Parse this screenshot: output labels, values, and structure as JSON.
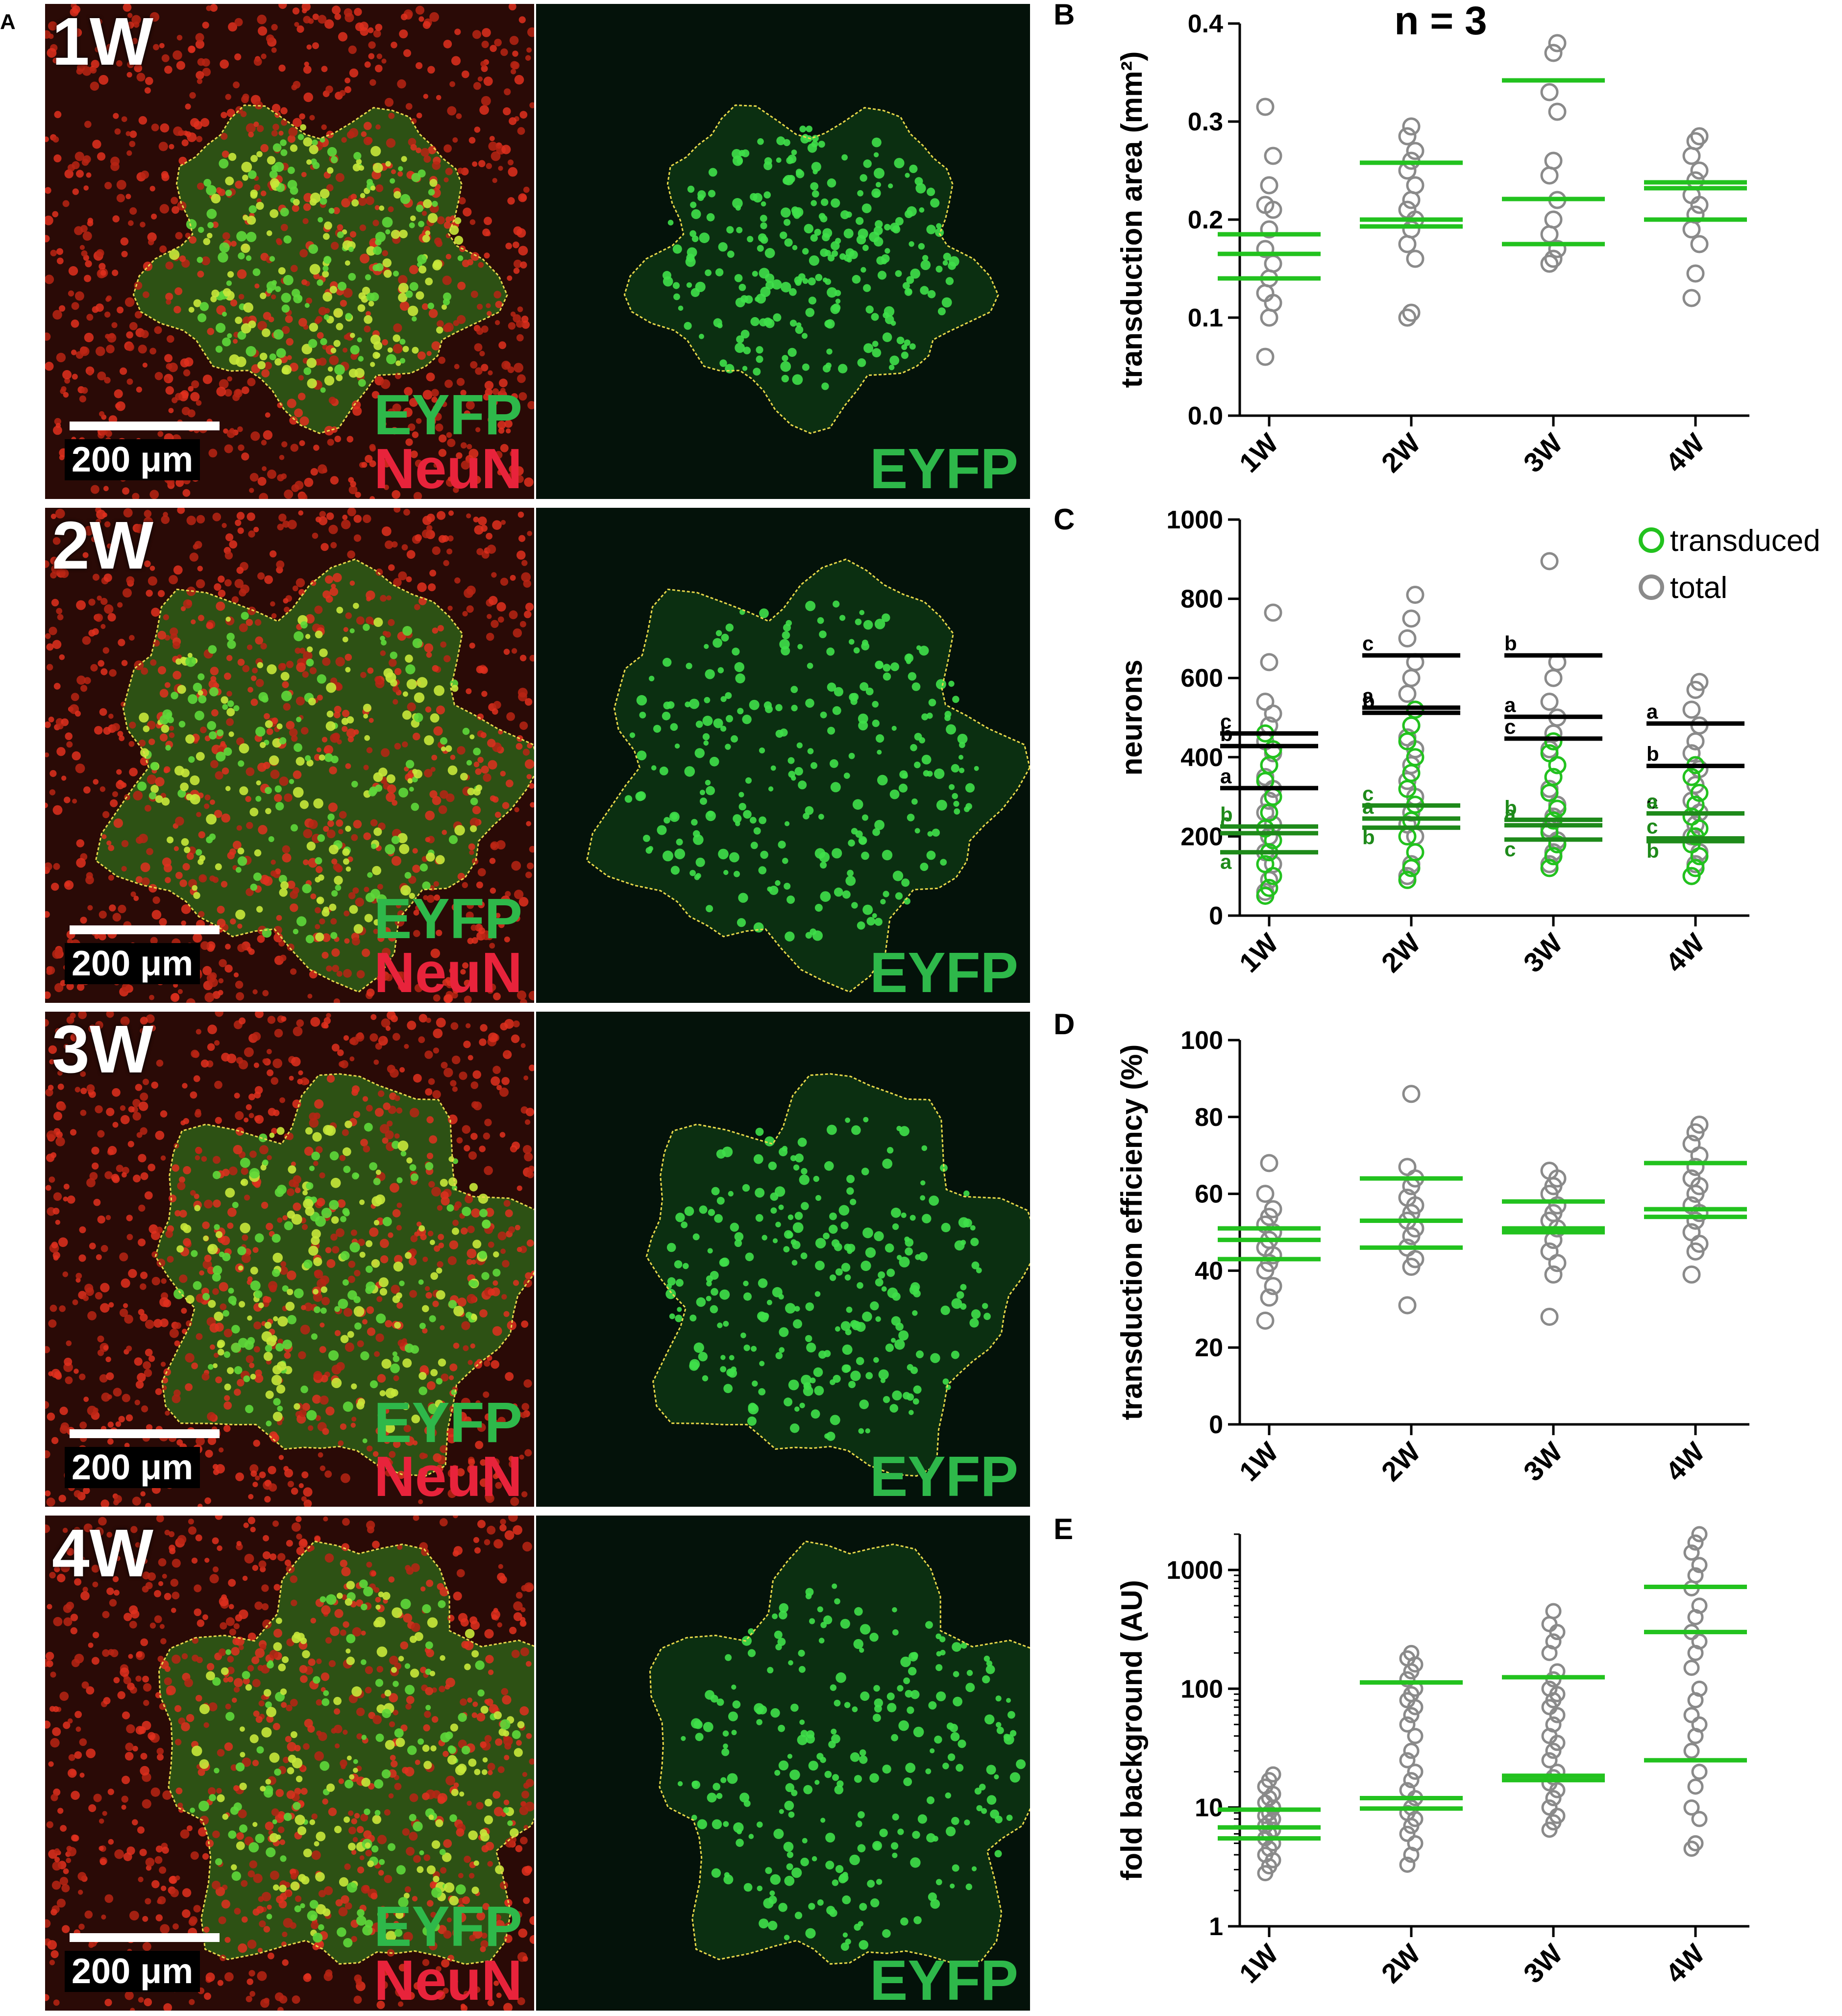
{
  "colors": {
    "green": "#22c21e",
    "gray": "#8a8a8a",
    "black": "#000000",
    "eyfp_text": "#2eb84a",
    "neun_text": "#e8233b"
  },
  "panel_a": {
    "letter": "A",
    "rows": [
      {
        "week": "1W",
        "scale": "200 μm",
        "merge_label_1": "EYFP",
        "merge_label_2": "NeuN",
        "single_label": "EYFP"
      },
      {
        "week": "2W",
        "scale": "200 μm",
        "merge_label_1": "EYFP",
        "merge_label_2": "NeuN",
        "single_label": "EYFP"
      },
      {
        "week": "3W",
        "scale": "200 μm",
        "merge_label_1": "EYFP",
        "merge_label_2": "NeuN",
        "single_label": "EYFP"
      },
      {
        "week": "4W",
        "scale": "200 μm",
        "merge_label_1": "EYFP",
        "merge_label_2": "NeuN",
        "single_label": "EYFP"
      }
    ]
  },
  "chart_data": [
    {
      "panel": "B",
      "type": "scatter",
      "ylabel": "transduction area (mm²)",
      "ylim": [
        0,
        0.4
      ],
      "yticks": [
        "0.0",
        "0.1",
        "0.2",
        "0.3",
        "0.4"
      ],
      "ytick_values": [
        0,
        0.1,
        0.2,
        0.3,
        0.4
      ],
      "categories": [
        "1W",
        "2W",
        "3W",
        "4W"
      ],
      "annotation": "n = 3",
      "points": [
        [
          0.06,
          0.1,
          0.115,
          0.125,
          0.14,
          0.155,
          0.17,
          0.19,
          0.21,
          0.215,
          0.235,
          0.265,
          0.315
        ],
        [
          0.1,
          0.105,
          0.16,
          0.175,
          0.19,
          0.2,
          0.21,
          0.22,
          0.235,
          0.25,
          0.26,
          0.27,
          0.285,
          0.295
        ],
        [
          0.155,
          0.16,
          0.17,
          0.185,
          0.2,
          0.22,
          0.245,
          0.26,
          0.31,
          0.33,
          0.37,
          0.38
        ],
        [
          0.12,
          0.145,
          0.175,
          0.19,
          0.205,
          0.215,
          0.225,
          0.24,
          0.25,
          0.265,
          0.28,
          0.285
        ]
      ],
      "means": [
        [
          0.185,
          0.165,
          0.14
        ],
        [
          0.258,
          0.2,
          0.193
        ],
        [
          0.342,
          0.221,
          0.175
        ],
        [
          0.238,
          0.232,
          0.2
        ]
      ]
    },
    {
      "panel": "C",
      "type": "scatter",
      "ylabel": "neurons",
      "ylim": [
        0,
        1000
      ],
      "yticks": [
        "0",
        "200",
        "400",
        "600",
        "800",
        "1000"
      ],
      "ytick_values": [
        0,
        200,
        400,
        600,
        800,
        1000
      ],
      "categories": [
        "1W",
        "2W",
        "3W",
        "4W"
      ],
      "legend": [
        "transduced",
        "total"
      ],
      "points_total": [
        [
          60,
          90,
          130,
          160,
          200,
          230,
          260,
          290,
          320,
          350,
          380,
          410,
          440,
          480,
          510,
          540,
          640,
          765
        ],
        [
          100,
          130,
          200,
          230,
          260,
          300,
          340,
          380,
          420,
          450,
          480,
          520,
          560,
          600,
          640,
          700,
          750,
          810
        ],
        [
          130,
          160,
          190,
          220,
          250,
          280,
          320,
          350,
          380,
          420,
          460,
          500,
          540,
          600,
          640,
          895
        ],
        [
          100,
          130,
          160,
          200,
          230,
          260,
          290,
          330,
          370,
          410,
          440,
          480,
          520,
          570,
          590
        ]
      ],
      "points_transduced": [
        [
          50,
          70,
          100,
          130,
          160,
          190,
          220,
          260,
          300,
          340,
          380,
          420,
          460
        ],
        [
          90,
          120,
          160,
          200,
          240,
          280,
          320,
          360,
          400,
          440,
          480,
          520
        ],
        [
          120,
          150,
          180,
          210,
          240,
          270,
          310,
          350,
          380,
          410,
          440
        ],
        [
          100,
          120,
          150,
          180,
          200,
          220,
          250,
          280,
          310,
          350,
          380
        ]
      ],
      "means_black": [
        [
          460,
          428,
          322
        ],
        [
          657,
          525,
          512
        ],
        [
          657,
          502,
          447
        ],
        [
          485,
          378,
          258
        ]
      ],
      "means_green": [
        [
          225,
          208,
          160
        ],
        [
          278,
          245,
          222
        ],
        [
          242,
          228,
          192
        ],
        [
          258,
          195,
          188
        ]
      ],
      "letters_black": [
        [
          "c",
          "b",
          "a"
        ],
        [
          "c",
          "a",
          "b"
        ],
        [
          "b",
          "a",
          "c"
        ],
        [
          "a",
          "b",
          "c"
        ]
      ],
      "letters_green": [
        [
          "b",
          "c",
          "a"
        ],
        [
          "c",
          "a",
          "b"
        ],
        [
          "b",
          "a",
          "c"
        ],
        [
          "a",
          "c",
          "b"
        ]
      ]
    },
    {
      "panel": "D",
      "type": "scatter",
      "ylabel": "transduction efficiency (%)",
      "ylim": [
        0,
        100
      ],
      "yticks": [
        "0",
        "20",
        "40",
        "60",
        "80",
        "100"
      ],
      "ytick_values": [
        0,
        20,
        40,
        60,
        80,
        100
      ],
      "categories": [
        "1W",
        "2W",
        "3W",
        "4W"
      ],
      "points": [
        [
          27,
          33,
          36,
          40,
          42,
          44,
          46,
          48,
          50,
          52,
          54,
          56,
          60,
          68
        ],
        [
          31,
          41,
          43,
          46,
          49,
          51,
          53,
          55,
          57,
          59,
          62,
          64,
          67,
          86
        ],
        [
          28,
          39,
          42,
          45,
          48,
          51,
          53,
          55,
          57,
          60,
          62,
          64,
          66
        ],
        [
          39,
          45,
          47,
          50,
          53,
          55,
          57,
          60,
          62,
          64,
          67,
          70,
          73,
          76,
          78
        ]
      ],
      "means": [
        [
          51,
          48,
          43
        ],
        [
          64,
          53,
          46
        ],
        [
          58,
          51,
          50
        ],
        [
          68,
          56,
          54
        ]
      ]
    },
    {
      "panel": "E",
      "type": "scatter",
      "ylabel": "fold background (AU)",
      "yscale": "log",
      "ylim": [
        1,
        2000
      ],
      "yticks": [
        "1",
        "10",
        "100",
        "1000"
      ],
      "ytick_values": [
        1,
        10,
        100,
        1000
      ],
      "categories": [
        "1W",
        "2W",
        "3W",
        "4W"
      ],
      "points": [
        [
          2.8,
          3.2,
          3.6,
          4,
          4.5,
          5,
          5.5,
          6,
          6.5,
          7,
          7.5,
          8,
          8.5,
          9,
          10,
          11,
          12,
          13,
          15,
          17,
          19
        ],
        [
          3.3,
          4,
          5,
          6,
          7,
          8,
          9,
          10,
          12,
          14,
          17,
          20,
          25,
          30,
          40,
          50,
          60,
          70,
          80,
          90,
          100,
          120,
          140,
          160,
          180,
          200
        ],
        [
          6.5,
          7.5,
          8.5,
          10,
          12,
          14,
          16,
          18,
          20,
          25,
          30,
          35,
          40,
          50,
          60,
          70,
          80,
          90,
          100,
          120,
          140,
          200,
          250,
          300,
          350,
          450
        ],
        [
          4.5,
          5,
          8,
          10,
          15,
          20,
          30,
          40,
          50,
          60,
          80,
          100,
          150,
          200,
          250,
          300,
          400,
          500,
          700,
          900,
          1100,
          1400,
          1700,
          2000
        ]
      ],
      "means": [
        [
          9.6,
          6.8,
          5.5
        ],
        [
          113,
          12,
          9.8
        ],
        [
          125,
          18.5,
          17
        ],
        [
          720,
          300,
          25
        ]
      ]
    }
  ]
}
